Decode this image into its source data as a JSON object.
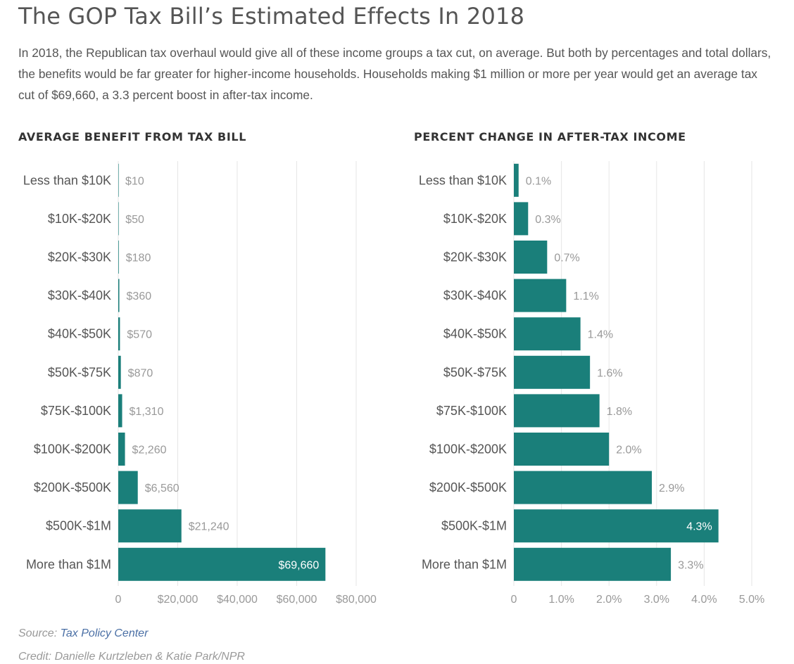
{
  "title": "The GOP Tax Bill’s Estimated Effects In 2018",
  "subtitle": "In 2018, the Republican tax overhaul would give all of these income groups a tax cut, on average. But both by percentages and total dollars, the benefits would be far greater for higher-income households. Households making $1 million or more per year would get an average tax cut of $69,660, a 3.3 percent boost in after-tax income.",
  "colors": {
    "bar": "#1a7f7a",
    "grid": "#e6e6e6",
    "label": "#999999",
    "category": "#555555"
  },
  "chart_data": [
    {
      "type": "bar",
      "orientation": "horizontal",
      "title": "AVERAGE BENEFIT FROM TAX BILL",
      "categories": [
        "Less than $10K",
        "$10K-$20K",
        "$20K-$30K",
        "$30K-$40K",
        "$40K-$50K",
        "$50K-$75K",
        "$75K-$100K",
        "$100K-$200K",
        "$200K-$500K",
        "$500K-$1M",
        "More than $1M"
      ],
      "values": [
        10,
        50,
        180,
        360,
        570,
        870,
        1310,
        2260,
        6560,
        21240,
        69660
      ],
      "value_labels": [
        "$10",
        "$50",
        "$180",
        "$360",
        "$570",
        "$870",
        "$1,310",
        "$2,260",
        "$6,560",
        "$21,240",
        "$69,660"
      ],
      "xlim": [
        0,
        80000
      ],
      "ticks": [
        0,
        20000,
        40000,
        60000,
        80000
      ],
      "tick_labels": [
        "0",
        "$20,000",
        "$40,000",
        "$60,000",
        "$80,000"
      ]
    },
    {
      "type": "bar",
      "orientation": "horizontal",
      "title": "PERCENT CHANGE IN AFTER-TAX INCOME",
      "categories": [
        "Less than $10K",
        "$10K-$20K",
        "$20K-$30K",
        "$30K-$40K",
        "$40K-$50K",
        "$50K-$75K",
        "$75K-$100K",
        "$100K-$200K",
        "$200K-$500K",
        "$500K-$1M",
        "More than $1M"
      ],
      "values": [
        0.1,
        0.3,
        0.7,
        1.1,
        1.4,
        1.6,
        1.8,
        2.0,
        2.9,
        4.3,
        3.3
      ],
      "value_labels": [
        "0.1%",
        "0.3%",
        "0.7%",
        "1.1%",
        "1.4%",
        "1.6%",
        "1.8%",
        "2.0%",
        "2.9%",
        "4.3%",
        "3.3%"
      ],
      "xlim": [
        0,
        5
      ],
      "ticks": [
        0,
        1,
        2,
        3,
        4,
        5
      ],
      "tick_labels": [
        "0",
        "1.0%",
        "2.0%",
        "3.0%",
        "4.0%",
        "5.0%"
      ]
    }
  ],
  "footer": {
    "source_prefix": "Source: ",
    "source_link": "Tax Policy Center",
    "credit": "Credit: Danielle Kurtzleben & Katie Park/NPR"
  }
}
